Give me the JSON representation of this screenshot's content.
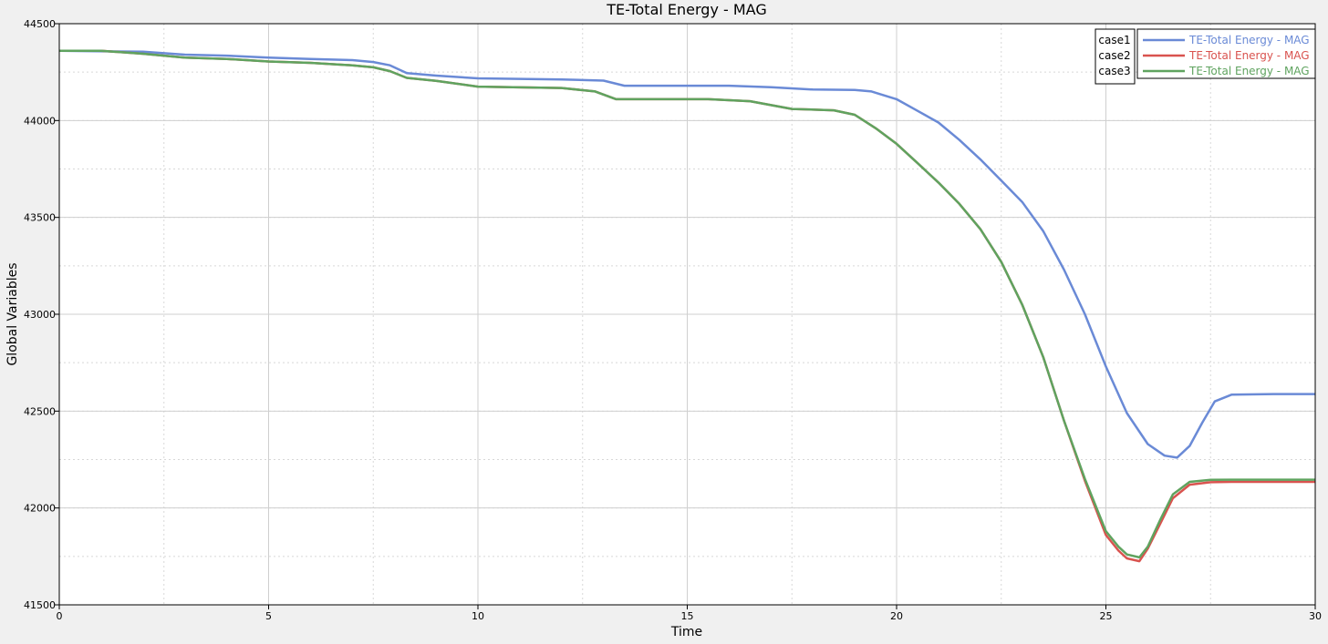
{
  "chart_data": {
    "type": "line",
    "title": "TE-Total Energy - MAG",
    "xlabel": "Time",
    "ylabel": "Global Variables",
    "xlim": [
      0,
      30
    ],
    "ylim": [
      41500,
      44500
    ],
    "xticks": [
      0,
      5,
      10,
      15,
      20,
      25,
      30
    ],
    "yticks": [
      41500,
      42000,
      42500,
      43000,
      43500,
      44000,
      44500
    ],
    "grid": true,
    "legend_position": "top-right",
    "series": [
      {
        "name": "TE-Total Energy - MAG",
        "case": "case1",
        "color": "#6a8ad6",
        "points": [
          [
            0,
            44360
          ],
          [
            2,
            44355
          ],
          [
            3,
            44340
          ],
          [
            4,
            44335
          ],
          [
            5,
            44325
          ],
          [
            6,
            44318
          ],
          [
            7,
            44312
          ],
          [
            7.5,
            44302
          ],
          [
            7.9,
            44285
          ],
          [
            8.3,
            44245
          ],
          [
            9,
            44232
          ],
          [
            10,
            44218
          ],
          [
            12,
            44212
          ],
          [
            13,
            44206
          ],
          [
            13.5,
            44180
          ],
          [
            14,
            44180
          ],
          [
            16,
            44180
          ],
          [
            17,
            44172
          ],
          [
            18,
            44160
          ],
          [
            19,
            44158
          ],
          [
            19.4,
            44150
          ],
          [
            20,
            44110
          ],
          [
            20.5,
            44050
          ],
          [
            21,
            43990
          ],
          [
            21.5,
            43900
          ],
          [
            22,
            43800
          ],
          [
            22.5,
            43690
          ],
          [
            23,
            43580
          ],
          [
            23.5,
            43430
          ],
          [
            24,
            43230
          ],
          [
            24.5,
            43000
          ],
          [
            25,
            42730
          ],
          [
            25.5,
            42490
          ],
          [
            26,
            42330
          ],
          [
            26.4,
            42270
          ],
          [
            26.7,
            42260
          ],
          [
            27,
            42320
          ],
          [
            27.3,
            42440
          ],
          [
            27.6,
            42550
          ],
          [
            28,
            42585
          ],
          [
            29,
            42588
          ],
          [
            30,
            42588
          ]
        ]
      },
      {
        "name": "TE-Total Energy - MAG",
        "case": "case2",
        "color": "#d9534f",
        "points": [
          [
            0,
            44360
          ],
          [
            1,
            44360
          ],
          [
            2,
            44345
          ],
          [
            3,
            44325
          ],
          [
            4,
            44318
          ],
          [
            5,
            44305
          ],
          [
            6,
            44298
          ],
          [
            7,
            44285
          ],
          [
            7.5,
            44275
          ],
          [
            7.9,
            44255
          ],
          [
            8.3,
            44220
          ],
          [
            9,
            44205
          ],
          [
            10,
            44175
          ],
          [
            12,
            44168
          ],
          [
            12.8,
            44150
          ],
          [
            13.3,
            44110
          ],
          [
            14,
            44110
          ],
          [
            15.5,
            44110
          ],
          [
            16.5,
            44100
          ],
          [
            17.5,
            44060
          ],
          [
            18.5,
            44053
          ],
          [
            19,
            44030
          ],
          [
            19.5,
            43960
          ],
          [
            20,
            43880
          ],
          [
            20.5,
            43780
          ],
          [
            21,
            43680
          ],
          [
            21.5,
            43570
          ],
          [
            22,
            43440
          ],
          [
            22.5,
            43270
          ],
          [
            23,
            43050
          ],
          [
            23.5,
            42780
          ],
          [
            24,
            42450
          ],
          [
            24.5,
            42140
          ],
          [
            25,
            41860
          ],
          [
            25.3,
            41780
          ],
          [
            25.5,
            41740
          ],
          [
            25.8,
            41725
          ],
          [
            26,
            41790
          ],
          [
            26.3,
            41920
          ],
          [
            26.6,
            42050
          ],
          [
            27,
            42120
          ],
          [
            27.5,
            42133
          ],
          [
            28,
            42135
          ],
          [
            30,
            42135
          ]
        ]
      },
      {
        "name": "TE-Total Energy - MAG",
        "case": "case3",
        "color": "#5fa35f",
        "points": [
          [
            0,
            44360
          ],
          [
            1,
            44360
          ],
          [
            2,
            44345
          ],
          [
            3,
            44325
          ],
          [
            4,
            44318
          ],
          [
            5,
            44305
          ],
          [
            6,
            44298
          ],
          [
            7,
            44285
          ],
          [
            7.5,
            44275
          ],
          [
            7.9,
            44255
          ],
          [
            8.3,
            44220
          ],
          [
            9,
            44205
          ],
          [
            10,
            44175
          ],
          [
            12,
            44168
          ],
          [
            12.8,
            44150
          ],
          [
            13.3,
            44110
          ],
          [
            14,
            44110
          ],
          [
            15.5,
            44110
          ],
          [
            16.5,
            44100
          ],
          [
            17.5,
            44060
          ],
          [
            18.5,
            44053
          ],
          [
            19,
            44030
          ],
          [
            19.5,
            43960
          ],
          [
            20,
            43880
          ],
          [
            20.5,
            43780
          ],
          [
            21,
            43680
          ],
          [
            21.5,
            43570
          ],
          [
            22,
            43440
          ],
          [
            22.5,
            43270
          ],
          [
            23,
            43050
          ],
          [
            23.5,
            42780
          ],
          [
            24,
            42450
          ],
          [
            24.5,
            42150
          ],
          [
            25,
            41880
          ],
          [
            25.3,
            41800
          ],
          [
            25.5,
            41760
          ],
          [
            25.8,
            41745
          ],
          [
            26,
            41800
          ],
          [
            26.3,
            41940
          ],
          [
            26.6,
            42070
          ],
          [
            27,
            42135
          ],
          [
            27.5,
            42145
          ],
          [
            28,
            42146
          ],
          [
            30,
            42146
          ]
        ]
      }
    ]
  }
}
